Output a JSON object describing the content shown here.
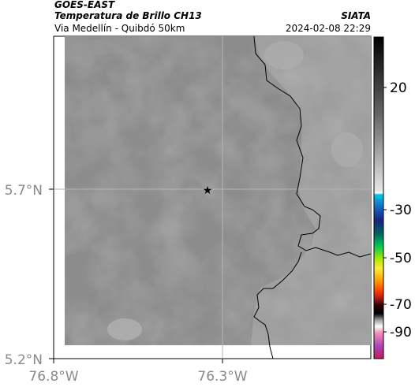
{
  "header": {
    "satellite": "GOES-EAST",
    "product": "Temperatura de Brillo CH13",
    "organization": "SIATA",
    "area": "Via Medellín - Quibdó 50km",
    "datetime": "2024-02-08 22:29"
  },
  "map": {
    "lon_ticks": [
      "76.8°W",
      "76.3°W"
    ],
    "lat_ticks": [
      "5.7°N",
      "5.2°N"
    ],
    "marker_icon": "star-icon"
  },
  "colorbar": {
    "ticks": [
      "20",
      "-30",
      "-50",
      "-70",
      "-90"
    ],
    "colors": [
      "#000000",
      "#ffffff",
      "#00b4d8",
      "#1a237e",
      "#00c853",
      "#ffeb3b",
      "#ff3d00",
      "#000000",
      "#ffffff",
      "#c2185b"
    ]
  }
}
